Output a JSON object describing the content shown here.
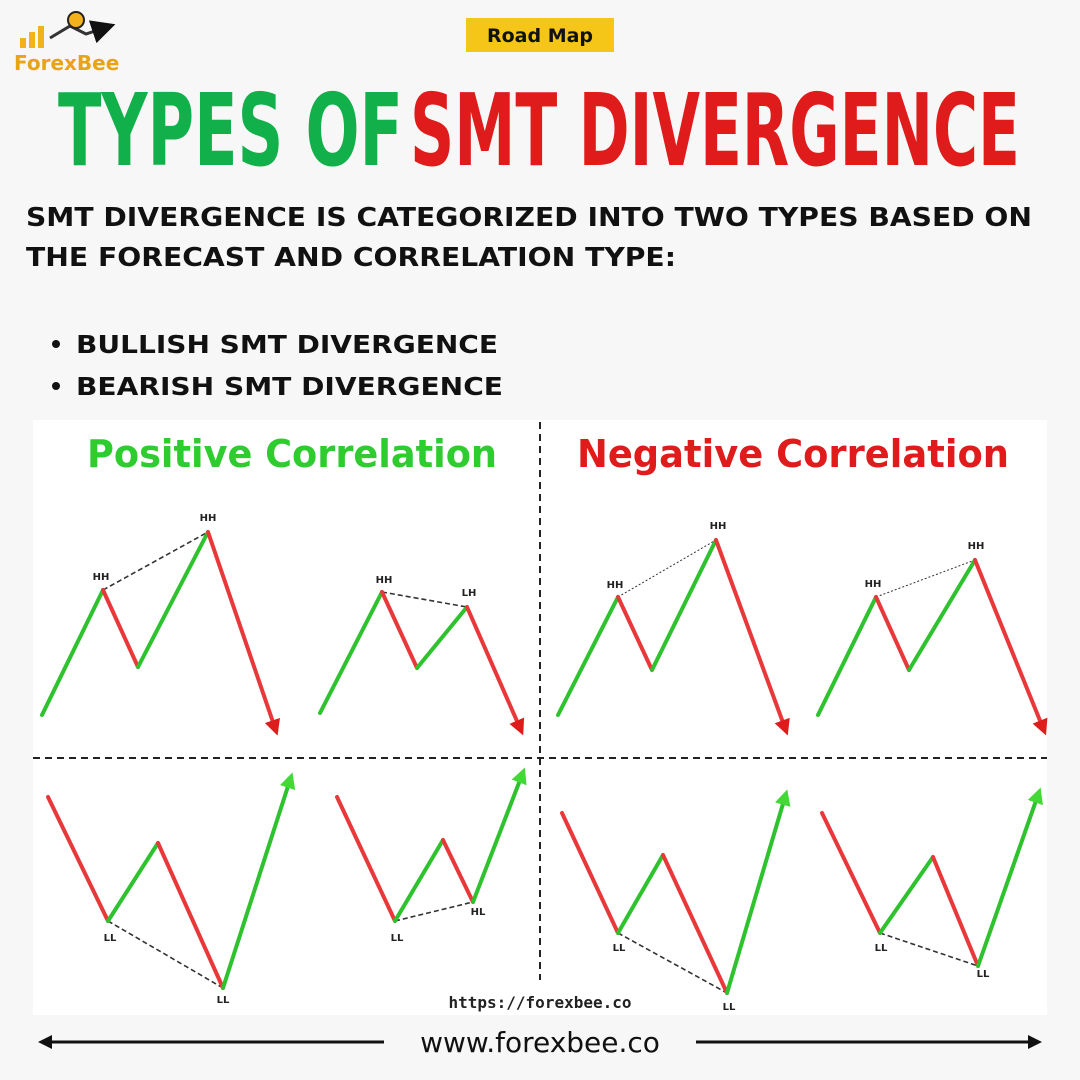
{
  "logo": "ForexBee",
  "badge": "Road Map",
  "title": {
    "part1": "TYPES OF",
    "part2": "SMT DIVERGENCE"
  },
  "intro": {
    "line1": "SMT DIVERGENCE IS CATEGORIZED INTO TWO TYPES BASED ON",
    "line2": "THE FORECAST AND CORRELATION TYPE:"
  },
  "bullets": [
    "BULLISH SMT DIVERGENCE",
    "BEARISH SMT DIVERGENCE"
  ],
  "panels": [
    {
      "heading": "Positive Correlation"
    },
    {
      "heading": "Negative Correlation"
    }
  ],
  "diagram_labels": [
    "HH",
    "HH",
    "HH",
    "LH",
    "HH",
    "HH",
    "HH",
    "HH",
    "LL",
    "LL",
    "LL",
    "HL",
    "LL",
    "LL",
    "LL",
    "LL"
  ],
  "diagram_url": "https://forexbee.co",
  "footer": "www.forexbee.co"
}
